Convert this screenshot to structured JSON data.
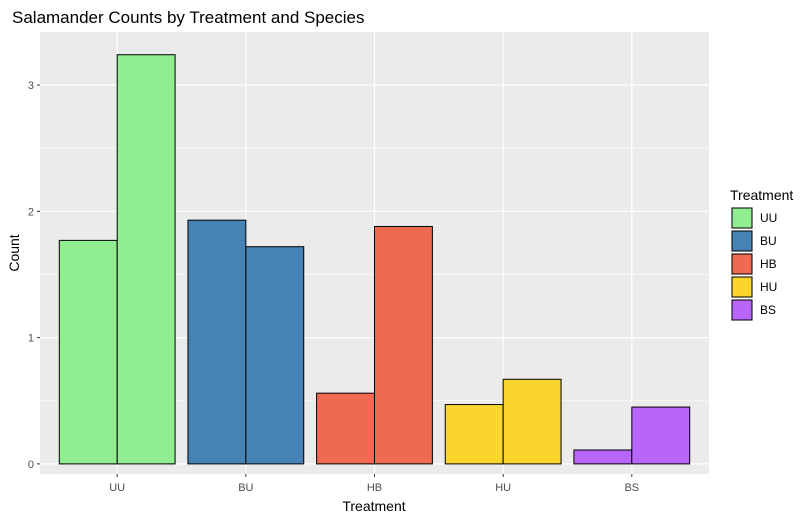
{
  "chart_data": {
    "type": "bar",
    "title": "Salamander Counts by Treatment and Species",
    "xlabel": "Treatment",
    "ylabel": "Count",
    "categories": [
      "UU",
      "BU",
      "HB",
      "HU",
      "BS"
    ],
    "bars": [
      {
        "treatment": "UU",
        "values": [
          1.77,
          3.24
        ]
      },
      {
        "treatment": "BU",
        "values": [
          1.93,
          1.72
        ]
      },
      {
        "treatment": "HB",
        "values": [
          0.56,
          1.88
        ]
      },
      {
        "treatment": "HU",
        "values": [
          0.47,
          0.67
        ]
      },
      {
        "treatment": "BS",
        "values": [
          0.11,
          0.45
        ]
      }
    ],
    "ylim": [
      -0.08,
      3.42
    ],
    "yticks": [
      0,
      1,
      2,
      3
    ],
    "grid": true,
    "legend": {
      "title": "Treatment",
      "placement": "right",
      "entries": [
        "UU",
        "BU",
        "HB",
        "HU",
        "BS"
      ]
    },
    "colors": {
      "UU": "#90ee90",
      "BU": "#4682b4",
      "HB": "#ee6a50",
      "HU": "#fad62c",
      "BS": "#b866fa",
      "panel": "#ebebeb",
      "grid": "#ffffff",
      "bar_outline": "#000000"
    }
  }
}
